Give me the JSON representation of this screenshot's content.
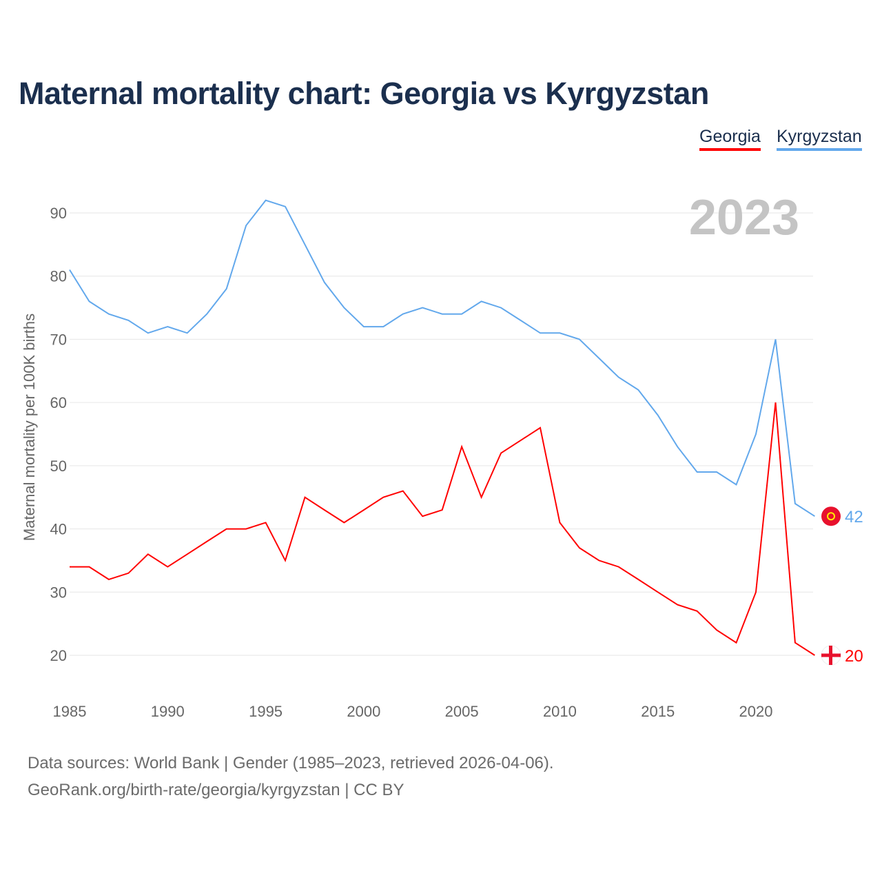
{
  "title": "Maternal mortality chart: Georgia vs Kyrgyzstan",
  "legend": [
    "Georgia",
    "Kyrgyzstan"
  ],
  "colors": {
    "Georgia": "#ff0000",
    "Kyrgyzstan": "#62a8ec"
  },
  "year_label": "2023",
  "footer": {
    "line1": "Data sources: World Bank | Gender (1985–2023, retrieved 2026-04-06).",
    "line2": "GeoRank.org/birth-rate/georgia/kyrgyzstan | CC BY"
  },
  "chart_data": {
    "type": "line",
    "title": "Maternal mortality chart: Georgia vs Kyrgyzstan",
    "xlabel": "",
    "ylabel": "Maternal mortality per 100K births",
    "xlim": [
      1985,
      2023
    ],
    "ylim": [
      15,
      95
    ],
    "xticks": [
      1985,
      1990,
      1995,
      2000,
      2005,
      2010,
      2015,
      2020
    ],
    "yticks": [
      20,
      30,
      40,
      50,
      60,
      70,
      80,
      90
    ],
    "grid": true,
    "legend_position": "top-right",
    "x": [
      1985,
      1986,
      1987,
      1988,
      1989,
      1990,
      1991,
      1992,
      1993,
      1994,
      1995,
      1996,
      1997,
      1998,
      1999,
      2000,
      2001,
      2002,
      2003,
      2004,
      2005,
      2006,
      2007,
      2008,
      2009,
      2010,
      2011,
      2012,
      2013,
      2014,
      2015,
      2016,
      2017,
      2018,
      2019,
      2020,
      2021,
      2022,
      2023
    ],
    "series": [
      {
        "name": "Georgia",
        "end_label": "20",
        "values": [
          34,
          34,
          32,
          33,
          36,
          34,
          36,
          38,
          40,
          40,
          41,
          35,
          45,
          43,
          41,
          43,
          45,
          46,
          42,
          43,
          53,
          45,
          52,
          54,
          56,
          41,
          37,
          35,
          34,
          32,
          30,
          28,
          27,
          24,
          22,
          30,
          60,
          22,
          20
        ]
      },
      {
        "name": "Kyrgyzstan",
        "end_label": "42",
        "values": [
          81,
          76,
          74,
          73,
          71,
          72,
          71,
          74,
          78,
          88,
          92,
          91,
          85,
          79,
          75,
          72,
          72,
          74,
          75,
          74,
          74,
          76,
          75,
          73,
          71,
          71,
          70,
          67,
          64,
          62,
          58,
          53,
          49,
          49,
          47,
          55,
          70,
          44,
          42
        ]
      }
    ]
  }
}
